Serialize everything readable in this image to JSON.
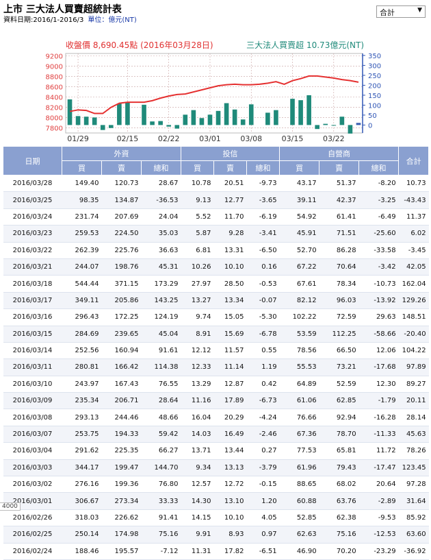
{
  "header": {
    "title": "上市 三大法人買賣超統計表",
    "date_range": "資料日期:2016/1-2016/3",
    "unit": "單位：億元(NT)",
    "select_value": "合計"
  },
  "chart_data": {
    "type": "bar+line",
    "close_label": "收盤價 8,690.45點 (2016年03月28日)",
    "net_label": "三大法人買賣超 10.73億元(NT)",
    "left_ticks": [
      "9200",
      "9000",
      "8800",
      "8600",
      "8400",
      "8200",
      "8000",
      "7800"
    ],
    "right_ticks": [
      "350",
      "300",
      "250",
      "200",
      "150",
      "100",
      "50",
      "0"
    ],
    "x_ticks": [
      "01/29",
      "02/15",
      "02/22",
      "03/01",
      "03/08",
      "03/15",
      "03/22"
    ],
    "left_ylim": [
      7700,
      9250
    ],
    "right_ylim": [
      -40,
      360
    ],
    "close_series": [
      8120,
      8150,
      8140,
      8080,
      8080,
      8200,
      8280,
      8300,
      8300,
      8300,
      8330,
      8380,
      8420,
      8450,
      8460,
      8500,
      8540,
      8580,
      8620,
      8640,
      8650,
      8640,
      8640,
      8650,
      8670,
      8700,
      8650,
      8720,
      8760,
      8810,
      8810,
      8790,
      8770,
      8740,
      8720,
      8690
    ],
    "net_series": [
      129.0,
      45.0,
      42.0,
      38.0,
      -25.0,
      -15.0,
      108.0,
      112.0,
      0,
      102.0,
      18.0,
      20.0,
      -8.0,
      -18.0,
      52.0,
      75.0,
      35.0,
      52.0,
      71.0,
      110.0,
      78.0,
      28.0,
      104.0,
      0,
      62.0,
      75.0,
      0,
      132.0,
      125.0,
      150.0,
      -20.0,
      6.0,
      -3.0,
      42.0,
      -43.0,
      10.7
    ],
    "colors": {
      "bar": "#1f8a7a",
      "bar_last": "#3a5fb0",
      "line": "#e53030",
      "grid": "#c8a0a0",
      "left_axis": "#e04040",
      "right_axis": "#2f55b5"
    }
  },
  "table": {
    "headers": {
      "date": "日期",
      "foreign": "外資",
      "trust": "投信",
      "dealer": "自營商",
      "total": "合計",
      "buy": "買",
      "sell": "賣",
      "net": "總和"
    },
    "rows": [
      [
        "2016/03/28",
        "149.40",
        "120.73",
        "28.67",
        "10.78",
        "20.51",
        "-9.73",
        "43.17",
        "51.37",
        "-8.20",
        "10.73"
      ],
      [
        "2016/03/25",
        "98.35",
        "134.87",
        "-36.53",
        "9.13",
        "12.77",
        "-3.65",
        "39.11",
        "42.37",
        "-3.25",
        "-43.43"
      ],
      [
        "2016/03/24",
        "231.74",
        "207.69",
        "24.04",
        "5.52",
        "11.70",
        "-6.19",
        "54.92",
        "61.41",
        "-6.49",
        "11.37"
      ],
      [
        "2016/03/23",
        "259.53",
        "224.50",
        "35.03",
        "5.87",
        "9.28",
        "-3.41",
        "45.91",
        "71.51",
        "-25.60",
        "6.02"
      ],
      [
        "2016/03/22",
        "262.39",
        "225.76",
        "36.63",
        "6.81",
        "13.31",
        "-6.50",
        "52.70",
        "86.28",
        "-33.58",
        "-3.45"
      ],
      [
        "2016/03/21",
        "244.07",
        "198.76",
        "45.31",
        "10.26",
        "10.10",
        "0.16",
        "67.22",
        "70.64",
        "-3.42",
        "42.05"
      ],
      [
        "2016/03/18",
        "544.44",
        "371.15",
        "173.29",
        "27.97",
        "28.50",
        "-0.53",
        "67.61",
        "78.34",
        "-10.73",
        "162.04"
      ],
      [
        "2016/03/17",
        "349.11",
        "205.86",
        "143.25",
        "13.27",
        "13.34",
        "-0.07",
        "82.12",
        "96.03",
        "-13.92",
        "129.26"
      ],
      [
        "2016/03/16",
        "296.43",
        "172.25",
        "124.19",
        "9.74",
        "15.05",
        "-5.30",
        "102.22",
        "72.59",
        "29.63",
        "148.51"
      ],
      [
        "2016/03/15",
        "284.69",
        "239.65",
        "45.04",
        "8.91",
        "15.69",
        "-6.78",
        "53.59",
        "112.25",
        "-58.66",
        "-20.40"
      ],
      [
        "2016/03/14",
        "252.56",
        "160.94",
        "91.61",
        "12.12",
        "11.57",
        "0.55",
        "78.56",
        "66.50",
        "12.06",
        "104.22"
      ],
      [
        "2016/03/11",
        "280.81",
        "166.42",
        "114.38",
        "12.33",
        "11.14",
        "1.19",
        "55.53",
        "73.21",
        "-17.68",
        "97.89"
      ],
      [
        "2016/03/10",
        "243.97",
        "167.43",
        "76.55",
        "13.29",
        "12.87",
        "0.42",
        "64.89",
        "52.59",
        "12.30",
        "89.27"
      ],
      [
        "2016/03/09",
        "235.34",
        "206.71",
        "28.64",
        "11.16",
        "17.89",
        "-6.73",
        "61.06",
        "62.85",
        "-1.79",
        "20.11"
      ],
      [
        "2016/03/08",
        "293.13",
        "244.46",
        "48.66",
        "16.04",
        "20.29",
        "-4.24",
        "76.66",
        "92.94",
        "-16.28",
        "28.14"
      ],
      [
        "2016/03/07",
        "253.75",
        "194.33",
        "59.42",
        "14.03",
        "16.49",
        "-2.46",
        "67.36",
        "78.70",
        "-11.33",
        "45.63"
      ],
      [
        "2016/03/04",
        "291.62",
        "225.35",
        "66.27",
        "13.71",
        "13.44",
        "0.27",
        "77.53",
        "65.81",
        "11.72",
        "78.26"
      ],
      [
        "2016/03/03",
        "344.17",
        "199.47",
        "144.70",
        "9.34",
        "13.13",
        "-3.79",
        "61.96",
        "79.43",
        "-17.47",
        "123.45"
      ],
      [
        "2016/03/02",
        "276.16",
        "199.36",
        "76.80",
        "12.57",
        "12.72",
        "-0.15",
        "88.65",
        "68.02",
        "20.64",
        "97.28"
      ],
      [
        "2016/03/01",
        "306.67",
        "273.34",
        "33.33",
        "14.30",
        "13.10",
        "1.20",
        "60.88",
        "63.76",
        "-2.89",
        "31.64"
      ],
      [
        "2016/02/26",
        "318.03",
        "226.62",
        "91.41",
        "14.15",
        "10.10",
        "4.05",
        "52.85",
        "62.38",
        "-9.53",
        "85.92"
      ],
      [
        "2016/02/25",
        "250.14",
        "174.98",
        "75.16",
        "9.91",
        "8.93",
        "0.97",
        "62.63",
        "75.16",
        "-12.53",
        "63.60"
      ],
      [
        "2016/02/24",
        "188.46",
        "195.57",
        "-7.12",
        "11.31",
        "17.82",
        "-6.51",
        "46.90",
        "70.20",
        "-23.29",
        "-36.92"
      ]
    ]
  },
  "corner_label": "4000"
}
